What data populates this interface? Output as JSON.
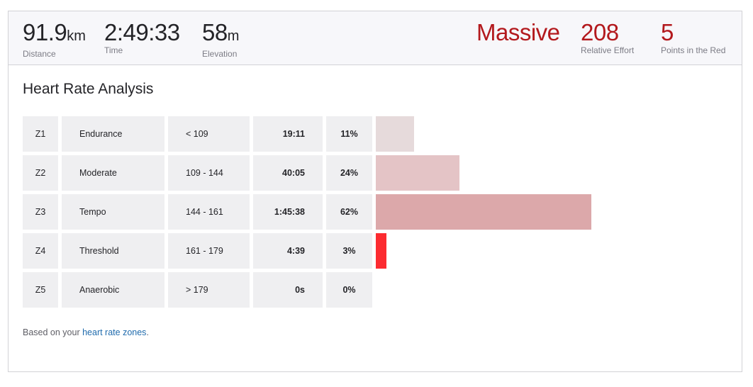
{
  "stats": {
    "distance": {
      "value": "91.9",
      "unit": "km",
      "label": "Distance"
    },
    "time": {
      "value": "2:49:33",
      "label": "Time"
    },
    "elevation": {
      "value": "58",
      "unit": "m",
      "label": "Elevation"
    },
    "effort_word": "Massive",
    "relative_effort": {
      "value": "208",
      "label": "Relative Effort"
    },
    "points_in_red": {
      "value": "5",
      "label": "Points in the Red"
    }
  },
  "section_title": "Heart Rate Analysis",
  "zones": [
    {
      "zone": "Z1",
      "name": "Endurance",
      "range": "< 109",
      "time": "19:11",
      "percent_label": "11%",
      "percent": 11,
      "color": "#e6dadb"
    },
    {
      "zone": "Z2",
      "name": "Moderate",
      "range": "109 - 144",
      "time": "40:05",
      "percent_label": "24%",
      "percent": 24,
      "color": "#e4c4c6"
    },
    {
      "zone": "Z3",
      "name": "Tempo",
      "range": "144 - 161",
      "time": "1:45:38",
      "percent_label": "62%",
      "percent": 62,
      "color": "#dca8aa"
    },
    {
      "zone": "Z4",
      "name": "Threshold",
      "range": "161 - 179",
      "time": "4:39",
      "percent_label": "3%",
      "percent": 3,
      "color": "#fc2b30"
    },
    {
      "zone": "Z5",
      "name": "Anaerobic",
      "range": "> 179",
      "time": "0s",
      "percent_label": "0%",
      "percent": 0,
      "color": "#fc2b30"
    }
  ],
  "footnote": {
    "text": "Based on your ",
    "link_text": "heart rate zones",
    "suffix": "."
  }
}
